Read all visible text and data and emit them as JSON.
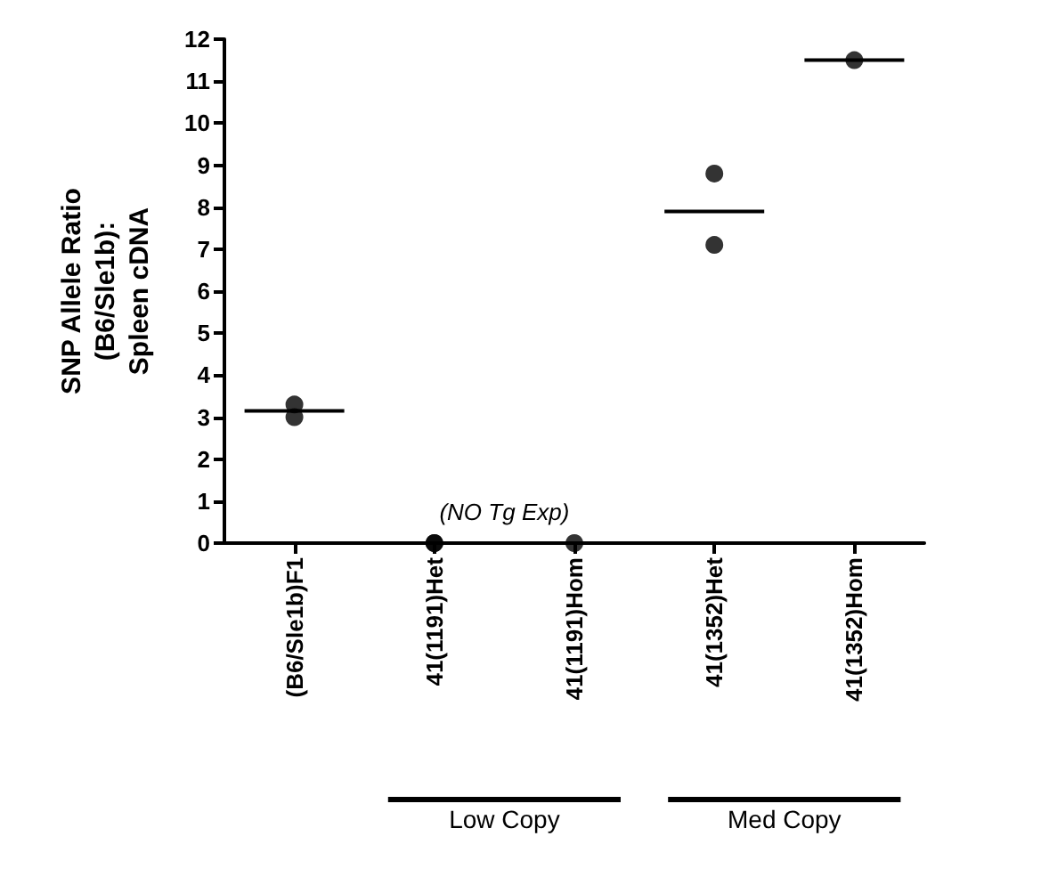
{
  "chart_data": {
    "type": "scatter",
    "ylabel": "SNP Allele Ratio\n(B6/Sle1b):\nSpleen cDNA",
    "categories": [
      "(B6/Sle1b)F1",
      "41(1191)Het",
      "41(1191)Hom",
      "41(1352)Het",
      "41(1352)Hom"
    ],
    "series": [
      {
        "type": "scatter",
        "color": "#000000",
        "marker": "circle",
        "x": [
          "(B6/Sle1b)F1",
          "(B6/Sle1b)F1",
          "41(1191)Het",
          "41(1191)Het",
          "41(1191)Hom",
          "41(1352)Het",
          "41(1352)Het",
          "41(1352)Hom"
        ],
        "values": [
          3.0,
          3.3,
          0,
          0,
          0,
          8.8,
          7.1,
          11.5
        ]
      },
      {
        "type": "box",
        "color": "#000000",
        "boxes": [
          {
            "low": 3.15,
            "q1": 3.15,
            "median": 3.15,
            "q3": 3.15,
            "high": 3.15
          },
          null,
          null,
          {
            "low": 7.9,
            "q1": 7.9,
            "median": 7.9,
            "q3": 7.9,
            "high": 7.9
          },
          {
            "low": 11.5,
            "q1": 11.5,
            "median": 11.5,
            "q3": 11.5,
            "high": 11.5
          }
        ]
      }
    ],
    "ylim": [
      0,
      12
    ],
    "yticks": [
      0,
      1,
      2,
      3,
      4,
      5,
      6,
      7,
      8,
      9,
      10,
      11,
      12
    ],
    "annotations": [
      "(NO Tg Exp)",
      "Low Copy",
      "Med Copy"
    ]
  }
}
